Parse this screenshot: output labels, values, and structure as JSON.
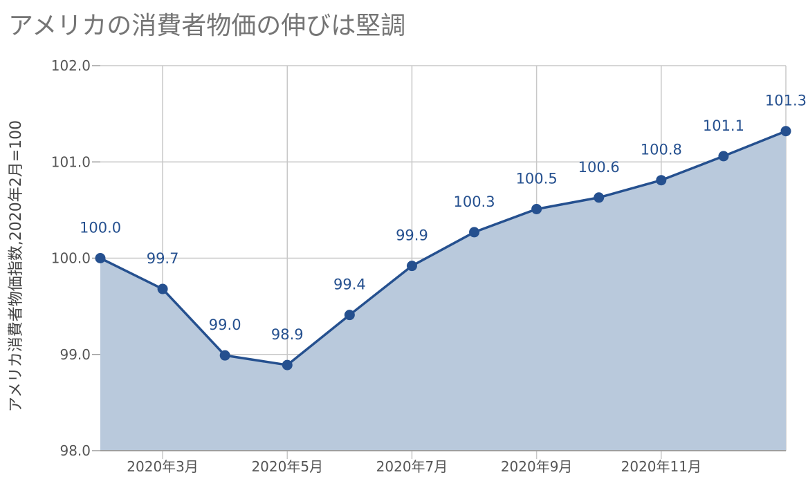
{
  "colors": {
    "line": "#25508f",
    "area": "#b9c9dc",
    "label": "#25508f",
    "grid": "#c8c8c8",
    "axis": "#9e9e9e"
  },
  "chart_data": {
    "type": "area",
    "title": "アメリカの消費者物価の伸びは堅調",
    "ylabel": "アメリカ消費者物価指数,2020年2月=100",
    "xlabel": "",
    "x": [
      "2020-02",
      "2020-03",
      "2020-04",
      "2020-05",
      "2020-06",
      "2020-07",
      "2020-08",
      "2020-09",
      "2020-10",
      "2020-11",
      "2020-12",
      "2021-01"
    ],
    "x_tick_labels": [
      {
        "x": "2020-03",
        "label": "2020年3月"
      },
      {
        "x": "2020-05",
        "label": "2020年5月"
      },
      {
        "x": "2020-07",
        "label": "2020年7月"
      },
      {
        "x": "2020-09",
        "label": "2020年9月"
      },
      {
        "x": "2020-11",
        "label": "2020年11月"
      }
    ],
    "series": [
      {
        "values": [
          100.0,
          99.68,
          98.99,
          98.89,
          99.41,
          99.92,
          100.27,
          100.51,
          100.63,
          100.81,
          101.06,
          101.32
        ],
        "data_labels": [
          "100.0",
          "99.7",
          "99.0",
          "98.9",
          "99.4",
          "99.9",
          "100.3",
          "100.5",
          "100.6",
          "100.8",
          "101.1",
          "101.3"
        ]
      }
    ],
    "ylim": [
      98.0,
      102.0
    ],
    "y_ticks": [
      "98.0",
      "99.0",
      "100.0",
      "101.0",
      "102.0"
    ],
    "grid": true,
    "legend": "none"
  }
}
